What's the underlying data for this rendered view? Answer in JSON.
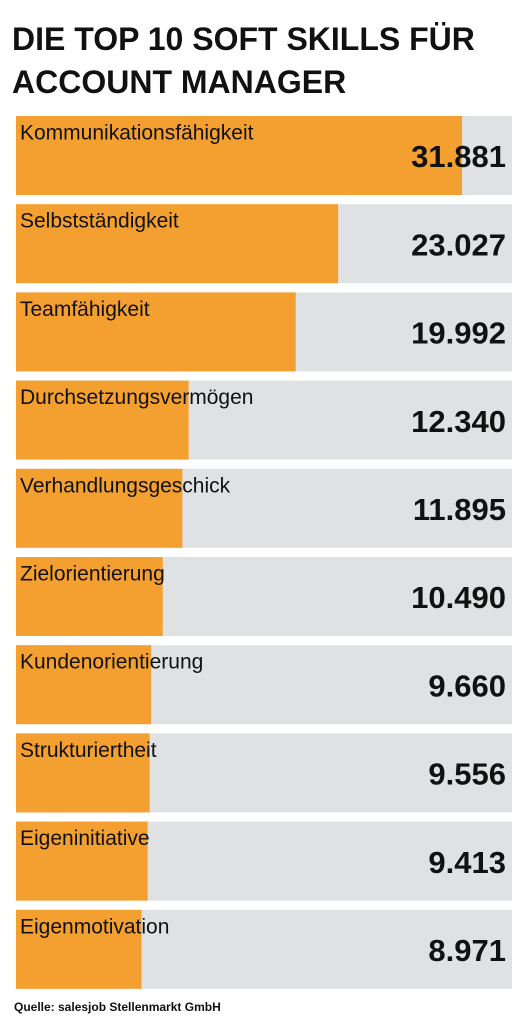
{
  "chart_data": {
    "type": "bar",
    "orientation": "horizontal",
    "title": "DIE TOP 10 SOFT SKILLS FÜR ACCOUNT MANAGER",
    "categories": [
      "Kommunikationsfähigkeit",
      "Selbstständigkeit",
      "Teamfähigkeit",
      "Durchsetzungsvermögen",
      "Verhandlungsgeschick",
      "Zielorientierung",
      "Kundenorientierung",
      "Strukturiertheit",
      "Eigeninitiative",
      "Eigenmotivation"
    ],
    "values": [
      31881,
      23027,
      19992,
      12340,
      11895,
      10490,
      9660,
      9556,
      9413,
      8971
    ],
    "value_labels": [
      "31.881",
      "23.027",
      "19.992",
      "12.340",
      "11.895",
      "10.490",
      "9.660",
      "9.556",
      "9.413",
      "8.971"
    ],
    "color": "#f4a030",
    "track_color": "#dfe1e2",
    "source": "Quelle: salesjob Stellenmarkt GmbH"
  }
}
